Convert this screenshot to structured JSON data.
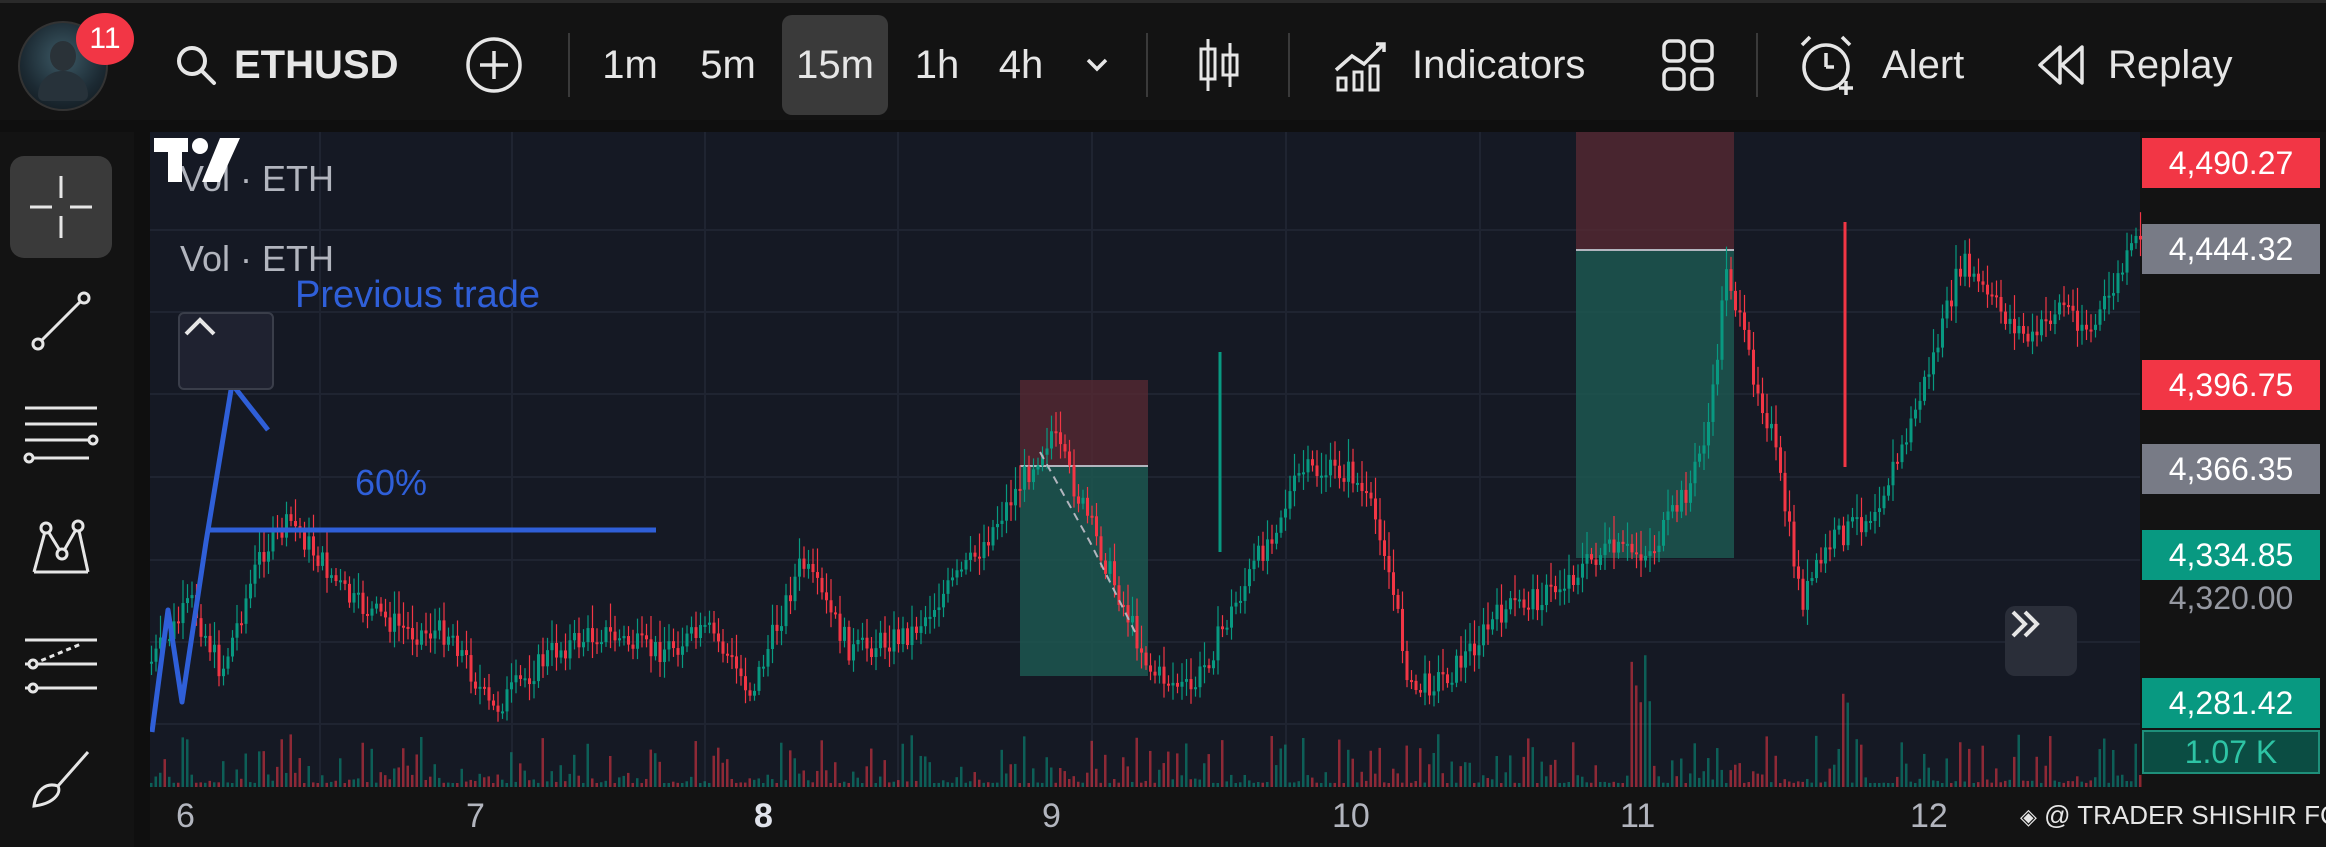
{
  "topbar": {
    "notification_count": "11",
    "symbol": "ETHUSD",
    "timeframes": [
      "1m",
      "5m",
      "15m",
      "1h",
      "4h"
    ],
    "active_timeframe": "15m",
    "indicators_label": "Indicators",
    "alert_label": "Alert",
    "replay_label": "Replay"
  },
  "chart": {
    "volume_labels": [
      "Vol · ETH",
      "Vol · ETH"
    ],
    "annotation_previous_trade": "Previous trade",
    "annotation_percent": "60%",
    "x_labels": [
      "6",
      "7",
      "8",
      "9",
      "10",
      "11",
      "12"
    ],
    "x_bold": "8",
    "price_tags": [
      {
        "value": "4,490.27",
        "color": "#f23645"
      },
      {
        "value": "4,444.32",
        "color": "#787b86"
      },
      {
        "value": "4,396.75",
        "color": "#f23645"
      },
      {
        "value": "4,366.35",
        "color": "#787b86"
      },
      {
        "value": "4,334.85",
        "color": "#089981"
      },
      {
        "value": "4,320.00",
        "color": ""
      },
      {
        "value": "4,281.42",
        "color": "#089981"
      },
      {
        "value": "1.07 K",
        "color": "#0b4d43"
      }
    ],
    "watermark": "@ TRADER SHISHIR FCS"
  },
  "colors": {
    "up": "#089981",
    "down": "#f23645",
    "annotation": "#2f5fd8"
  }
}
